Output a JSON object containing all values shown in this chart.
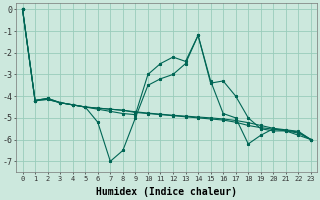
{
  "xlabel": "Humidex (Indice chaleur)",
  "xlim": [
    -0.5,
    23.5
  ],
  "ylim": [
    -7.5,
    0.3
  ],
  "bg_color": "#cce8dd",
  "grid_color": "#99ccbb",
  "line_color": "#006655",
  "line0": [
    0.0,
    -4.2,
    -4.1,
    -4.3,
    -4.4,
    -4.5,
    -5.2,
    -7.0,
    -6.5,
    -5.0,
    -3.5,
    -3.2,
    -3.0,
    -2.5,
    -1.2,
    -3.4,
    -3.3,
    -4.0,
    -5.0,
    -5.5,
    -5.6,
    -5.6,
    -5.7,
    -6.0
  ],
  "line1": [
    0.0,
    -4.2,
    -4.1,
    -4.3,
    -4.4,
    -4.5,
    -4.6,
    -4.7,
    -4.8,
    -4.85,
    -3.0,
    -2.5,
    -2.2,
    -2.4,
    -1.2,
    -3.3,
    -4.8,
    -5.0,
    -6.2,
    -5.8,
    -5.5,
    -5.6,
    -5.8,
    -6.0
  ],
  "line2": [
    0.0,
    -4.2,
    -4.15,
    -4.3,
    -4.4,
    -4.5,
    -4.55,
    -4.6,
    -4.65,
    -4.75,
    -4.8,
    -4.85,
    -4.9,
    -4.95,
    -5.0,
    -5.05,
    -5.1,
    -5.2,
    -5.35,
    -5.45,
    -5.52,
    -5.58,
    -5.65,
    -6.0
  ],
  "line3": [
    0.0,
    -4.2,
    -4.15,
    -4.3,
    -4.4,
    -4.5,
    -4.55,
    -4.6,
    -4.65,
    -4.72,
    -4.78,
    -4.83,
    -4.88,
    -4.92,
    -4.96,
    -5.0,
    -5.05,
    -5.12,
    -5.22,
    -5.35,
    -5.48,
    -5.55,
    -5.62,
    -6.0
  ],
  "yticks": [
    0,
    -1,
    -2,
    -3,
    -4,
    -5,
    -6,
    -7
  ],
  "xtick_fontsize": 5,
  "ytick_fontsize": 6,
  "xlabel_fontsize": 7
}
